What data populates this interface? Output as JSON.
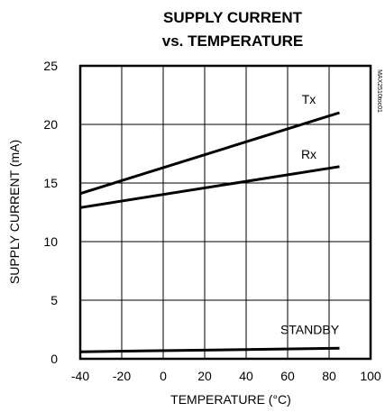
{
  "chart_data": {
    "type": "line",
    "title_lines": [
      "SUPPLY CURRENT",
      "vs. TEMPERATURE"
    ],
    "xlabel": "TEMPERATURE (°C)",
    "ylabel": "SUPPLY CURRENT (mA)",
    "xlim": [
      -40,
      100
    ],
    "ylim": [
      0,
      25
    ],
    "x_ticks": [
      -40,
      -20,
      0,
      20,
      40,
      60,
      80,
      100
    ],
    "y_ticks": [
      0,
      5,
      10,
      15,
      20,
      25
    ],
    "x_tick_labels": [
      "-40",
      "-20",
      "0",
      "20",
      "40",
      "60",
      "80",
      "100"
    ],
    "y_tick_labels": [
      "0",
      "5",
      "10",
      "15",
      "20",
      "25"
    ],
    "grid": true,
    "watermark": "MAX2510toc01",
    "series": [
      {
        "name": "Tx",
        "x": [
          -40,
          85
        ],
        "y": [
          14.1,
          21.0
        ]
      },
      {
        "name": "Rx",
        "x": [
          -40,
          85
        ],
        "y": [
          12.9,
          16.4
        ]
      },
      {
        "name": "STANDBY",
        "x": [
          -40,
          85
        ],
        "y": [
          0.6,
          0.9
        ]
      }
    ]
  }
}
